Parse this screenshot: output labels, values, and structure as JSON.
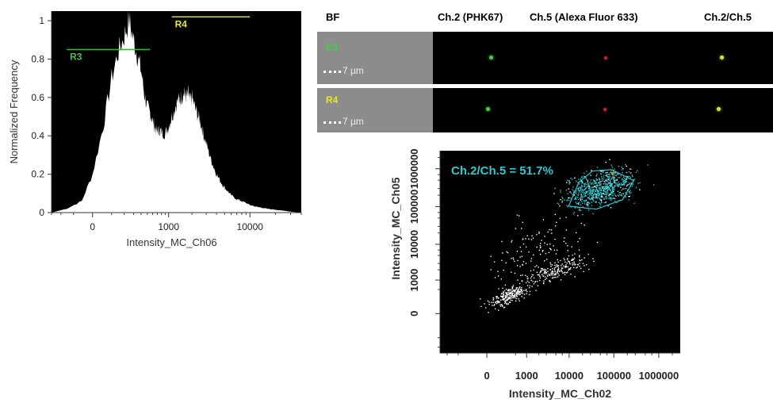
{
  "channel_headers": [
    "BF",
    "Ch.2 (PHK67)",
    "Ch.5 (Alexa Fluor 633)",
    "Ch.2/Ch.5"
  ],
  "image_rows": [
    {
      "region": "R3",
      "scale_bar": "7 µm",
      "color": "#4cc94c"
    },
    {
      "region": "R4",
      "scale_bar": "7 µm",
      "color": "#e6e62e"
    }
  ],
  "colors": {
    "green_spot": "#3cd23c",
    "red_spot": "#c42020",
    "yellow_spot": "#d8e040",
    "gate_cyan": "#2ec8d0",
    "r3_line": "#2db82d",
    "r4_line": "#d8d82a"
  },
  "chart_data": [
    {
      "type": "area",
      "title": "",
      "xlabel": "Intensity_MC_Ch06",
      "ylabel": "Normalized Frequency",
      "x_ticks": [
        "0",
        "1000",
        "10000"
      ],
      "y_ticks": [
        "0",
        "0.2",
        "0.4",
        "0.6",
        "0.8",
        "1"
      ],
      "ylim": [
        0,
        1.05
      ],
      "x_scale": "logicle",
      "series": [
        {
          "x": [
            -300,
            -150,
            -50,
            0,
            50,
            100,
            150,
            200,
            250,
            300,
            350,
            400,
            450,
            500,
            550,
            600,
            650,
            700,
            750,
            800,
            900,
            1000,
            1100,
            1200,
            1300,
            1400,
            1500,
            1600,
            1700,
            1800,
            1900,
            2000,
            2200,
            2400,
            2600,
            2800,
            3000,
            3300,
            3600,
            4000,
            4500,
            5000,
            5500,
            6000,
            7000,
            8000,
            9000,
            10000,
            12000,
            14000,
            16000,
            20000,
            25000,
            30000,
            40000
          ],
          "y": [
            0.0,
            0.02,
            0.06,
            0.2,
            0.45,
            0.7,
            0.84,
            0.92,
            1.0,
            0.9,
            0.82,
            0.74,
            0.62,
            0.55,
            0.52,
            0.48,
            0.44,
            0.42,
            0.43,
            0.42,
            0.41,
            0.45,
            0.5,
            0.54,
            0.58,
            0.59,
            0.61,
            0.62,
            0.6,
            0.62,
            0.58,
            0.6,
            0.54,
            0.5,
            0.46,
            0.4,
            0.36,
            0.3,
            0.25,
            0.2,
            0.16,
            0.13,
            0.11,
            0.09,
            0.07,
            0.06,
            0.05,
            0.04,
            0.03,
            0.025,
            0.02,
            0.015,
            0.01,
            0.005,
            0.0
          ]
        }
      ],
      "gates": [
        {
          "name": "R3",
          "x_range": [
            -150,
            550
          ],
          "y": 0.85
        },
        {
          "name": "R4",
          "x_range": [
            1100,
            10000
          ],
          "y": 1.02
        }
      ]
    },
    {
      "type": "scatter",
      "title": "",
      "xlabel": "Intensity_MC_Ch02",
      "ylabel": "Intensity_MC_Ch05",
      "x_ticks": [
        "0",
        "1000",
        "10000",
        "100000",
        "1000000"
      ],
      "y_ticks": [
        "0",
        "1000",
        "10000",
        "100000",
        "1000000"
      ],
      "x_scale": "logicle",
      "y_scale": "logicle",
      "annotation": "Ch.2/Ch.5 = 51.7%",
      "clusters": [
        {
          "name": "low-low",
          "x_center": 300,
          "y_center": 300,
          "n": 250
        },
        {
          "name": "mid",
          "x_center": 5000,
          "y_center": 2000,
          "n": 200
        },
        {
          "name": "double-positive",
          "x_center": 50000,
          "y_center": 300000,
          "n": 600
        }
      ]
    }
  ]
}
